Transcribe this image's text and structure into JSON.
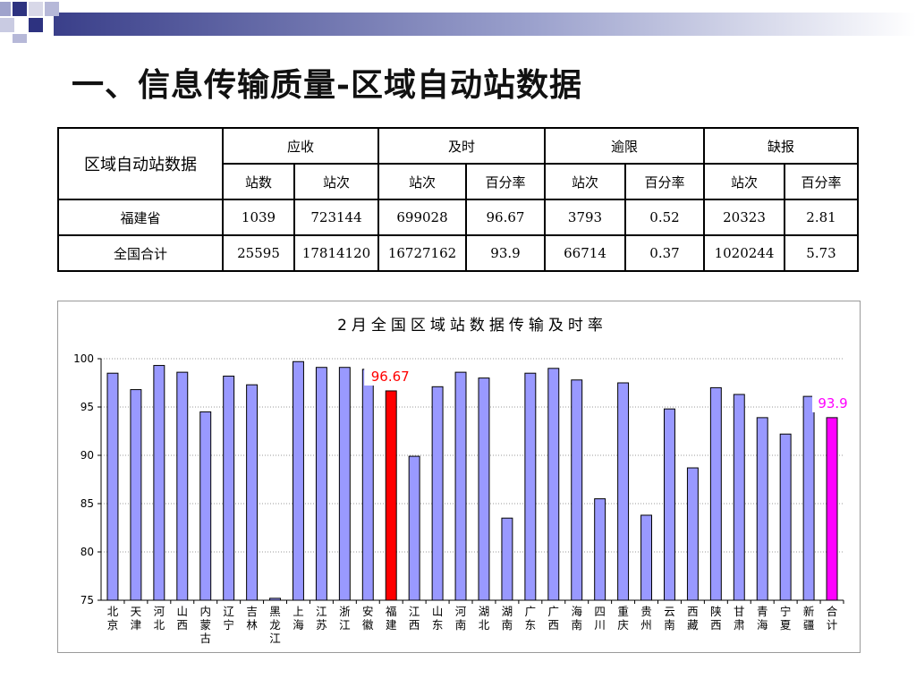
{
  "title": "一、信息传输质量-区域自动站数据",
  "table": {
    "corner": "区域自动站数据",
    "groups": [
      "应收",
      "及时",
      "逾限",
      "缺报"
    ],
    "subheaders": [
      "站数",
      "站次",
      "站次",
      "百分率",
      "站次",
      "百分率",
      "站次",
      "百分率"
    ],
    "rows": [
      {
        "name": "福建省",
        "cells": [
          "1039",
          "723144",
          "699028",
          "96.67",
          "3793",
          "0.52",
          "20323",
          "2.81"
        ]
      },
      {
        "name": "全国合计",
        "cells": [
          "25595",
          "17814120",
          "16727162",
          "93.9",
          "66714",
          "0.37",
          "1020244",
          "5.73"
        ]
      }
    ]
  },
  "colors": {
    "bar": "#9999ff",
    "highlight_fujian": "#ff0000",
    "highlight_total": "#ff00ff",
    "label_fujian": "#ff0000",
    "label_total": "#ff00ff"
  },
  "chart_data": {
    "type": "bar",
    "title": "2月全国区域站数据传输及时率",
    "categories": [
      "北京",
      "天津",
      "河北",
      "山西",
      "内蒙古",
      "辽宁",
      "吉林",
      "黑龙江",
      "上海",
      "江苏",
      "浙江",
      "安徽",
      "福建",
      "江西",
      "山东",
      "河南",
      "湖北",
      "湖南",
      "广东",
      "广西",
      "海南",
      "四川",
      "重庆",
      "贵州",
      "云南",
      "西藏",
      "陕西",
      "甘肃",
      "青海",
      "宁夏",
      "新疆",
      "合计"
    ],
    "values": [
      98.5,
      96.8,
      99.3,
      98.6,
      94.5,
      98.2,
      97.3,
      75.2,
      99.7,
      99.1,
      99.1,
      98.9,
      96.67,
      89.9,
      97.1,
      98.6,
      98.0,
      83.5,
      98.5,
      99.0,
      97.8,
      85.5,
      97.5,
      83.8,
      94.8,
      88.7,
      97.0,
      96.3,
      93.9,
      92.2,
      96.1,
      93.9
    ],
    "ylim": [
      75,
      100
    ],
    "yticks": [
      75,
      80,
      85,
      90,
      95,
      100
    ],
    "grid": true,
    "highlights": [
      {
        "category": "福建",
        "label": "96.67"
      },
      {
        "category": "合计",
        "label": "93.9"
      }
    ]
  }
}
